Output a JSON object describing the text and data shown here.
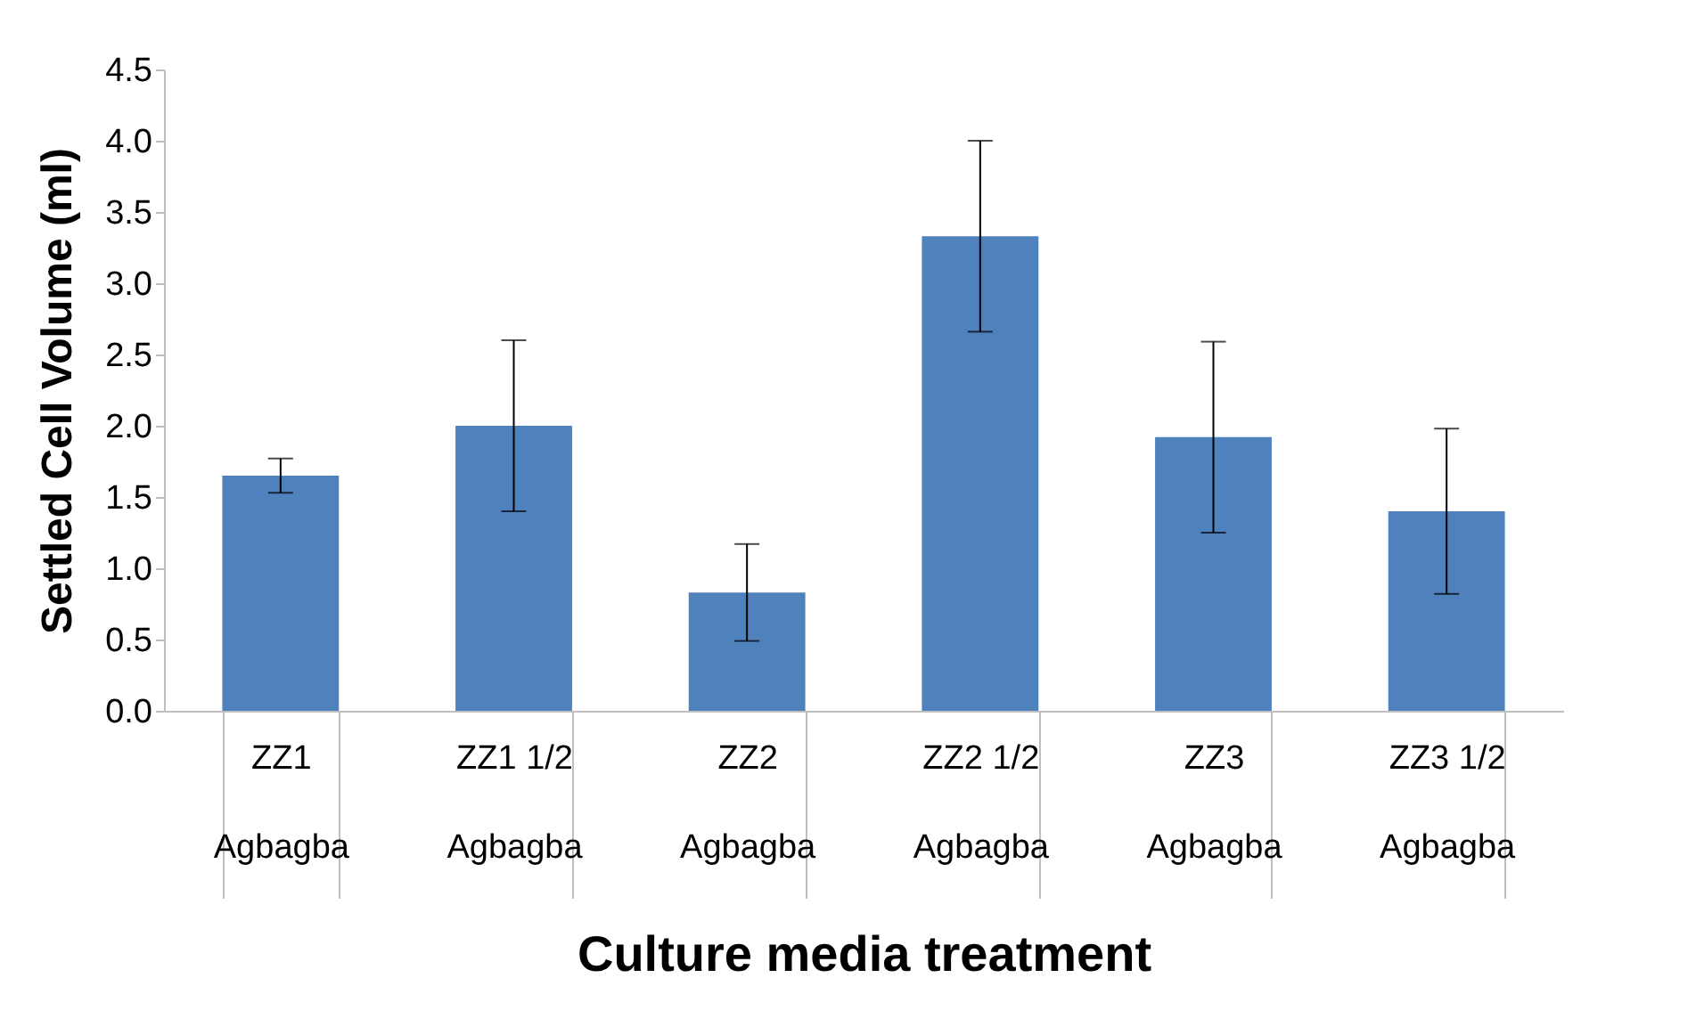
{
  "chart_data": {
    "type": "bar",
    "xlabel": "Culture media treatment",
    "ylabel": "Settled Cell Volume (ml)",
    "categories": [
      "ZZ1 Agbagba",
      "ZZ1 1/2 Agbagba",
      "ZZ2 Agbagba",
      "ZZ2 1/2 Agbagba",
      "ZZ3 Agbagba",
      "ZZ3 1/2 Agbagba"
    ],
    "values": [
      1.65,
      2.0,
      0.83,
      3.33,
      1.92,
      1.4
    ],
    "errors": [
      0.12,
      0.6,
      0.34,
      0.67,
      0.67,
      0.58
    ],
    "color": "#4f81bd",
    "ylim": [
      0,
      4.5
    ],
    "yticks": [
      {
        "value": 0,
        "label": "0.0"
      },
      0.5,
      {
        "value": 1,
        "label": "1.0"
      },
      1.5,
      {
        "value": 2,
        "label": "2.0"
      },
      2.5,
      {
        "value": 3,
        "label": "3.0"
      },
      3.5,
      {
        "value": 4,
        "label": "4.0"
      },
      4.5
    ],
    "grid": false
  }
}
